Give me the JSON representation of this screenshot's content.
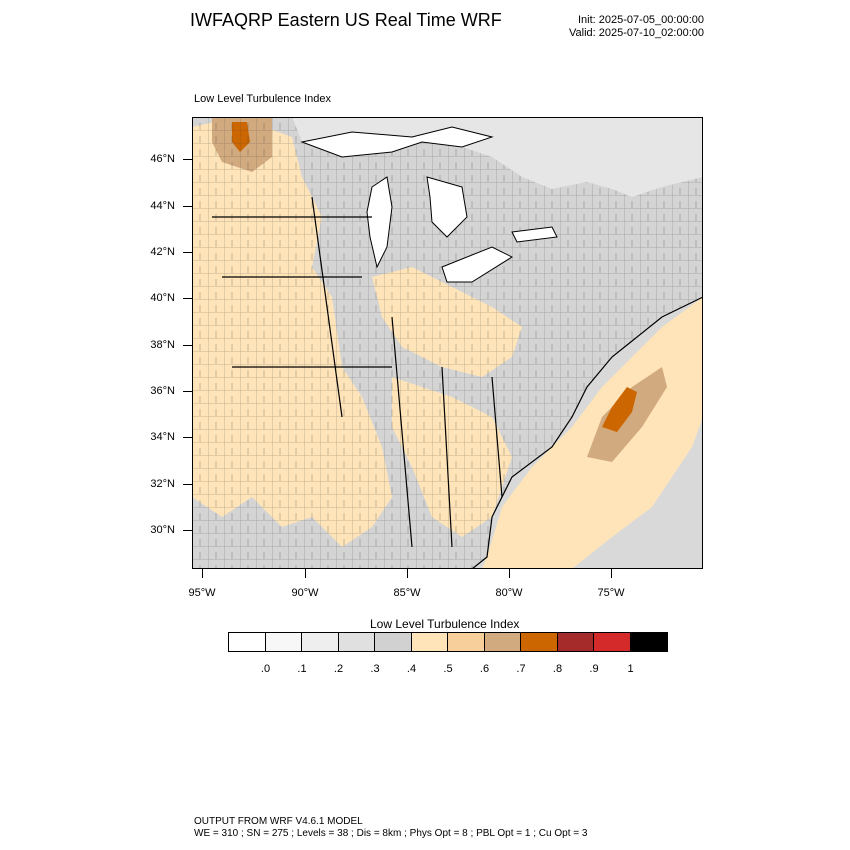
{
  "header": {
    "title": "IWFAQRP Eastern US Real Time WRF",
    "init": "Init: 2025-07-05_00:00:00",
    "valid": "Valid: 2025-07-10_02:00:00"
  },
  "map": {
    "subtitle": "Low Level Turbulence Index",
    "lat_labels": [
      "46°N",
      "44°N",
      "42°N",
      "40°N",
      "38°N",
      "36°N",
      "34°N",
      "32°N",
      "30°N"
    ],
    "lon_labels": [
      "95°W",
      "90°W",
      "85°W",
      "80°W",
      "75°W"
    ],
    "colors": {
      "water": "#d9d9d9",
      "lake": "#ffffff",
      "low_land": "#e6e6e6",
      "gray_land": "#d4d4d4",
      "light_orange": "#fee4b8",
      "tan": "#d2aa7f",
      "orange": "#cc6600"
    }
  },
  "colorbar": {
    "title": "Low Level Turbulence Index",
    "colors": [
      "#ffffff",
      "#f7f7f7",
      "#eeeeee",
      "#e0e0e0",
      "#d1d1d1",
      "#fee4b8",
      "#f6cf9a",
      "#d2aa7f",
      "#cc6600",
      "#a52a2a",
      "#d42a2a",
      "#000000"
    ],
    "labels": [
      ".0",
      ".1",
      ".2",
      ".3",
      ".4",
      ".5",
      ".6",
      ".7",
      ".8",
      ".9",
      "1"
    ]
  },
  "footer": {
    "line1": "OUTPUT FROM WRF V4.6.1 MODEL",
    "line2": "WE = 310 ; SN = 275 ; Levels = 38 ; Dis = 8km ; Phys Opt = 8 ; PBL Opt = 1 ; Cu Opt = 3"
  }
}
